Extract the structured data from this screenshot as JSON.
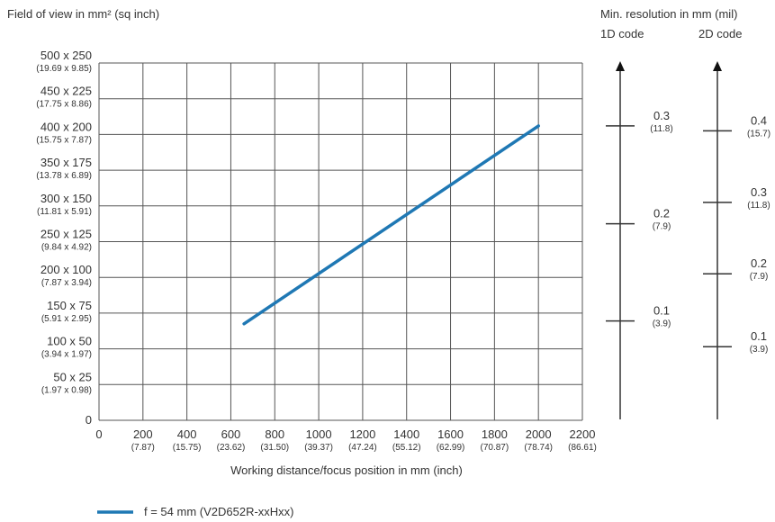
{
  "header": {
    "y_title": "Field of view in mm² (sq inch)",
    "res_title": "Min. resolution in mm (mil)",
    "col_1d": "1D code",
    "col_2d": "2D code"
  },
  "chart_data": {
    "type": "line",
    "xlabel": "Working distance/focus position in mm (inch)",
    "ylabel": "Field of view in mm² (sq inch)",
    "xlim": [
      0,
      2200
    ],
    "ylim": [
      0,
      500
    ],
    "grid": true,
    "legend_position": "bottom-left",
    "x_ticks": [
      {
        "value": 0,
        "label": "0",
        "sub": ""
      },
      {
        "value": 200,
        "label": "200",
        "sub": "(7.87)"
      },
      {
        "value": 400,
        "label": "400",
        "sub": "(15.75)"
      },
      {
        "value": 600,
        "label": "600",
        "sub": "(23.62)"
      },
      {
        "value": 800,
        "label": "800",
        "sub": "(31.50)"
      },
      {
        "value": 1000,
        "label": "1000",
        "sub": "(39.37)"
      },
      {
        "value": 1200,
        "label": "1200",
        "sub": "(47.24)"
      },
      {
        "value": 1400,
        "label": "1400",
        "sub": "(55.12)"
      },
      {
        "value": 1600,
        "label": "1600",
        "sub": "(62.99)"
      },
      {
        "value": 1800,
        "label": "1800",
        "sub": "(70.87)"
      },
      {
        "value": 2000,
        "label": "2000",
        "sub": "(78.74)"
      },
      {
        "value": 2200,
        "label": "2200",
        "sub": "(86.61)"
      }
    ],
    "y_ticks": [
      {
        "value": 0,
        "label": "0",
        "sub": ""
      },
      {
        "value": 50,
        "label": "50 x 25",
        "sub": "(1.97 x 0.98)"
      },
      {
        "value": 100,
        "label": "100 x 50",
        "sub": "(3.94 x 1.97)"
      },
      {
        "value": 150,
        "label": "150 x 75",
        "sub": "(5.91 x 2.95)"
      },
      {
        "value": 200,
        "label": "200 x 100",
        "sub": "(7.87 x 3.94)"
      },
      {
        "value": 250,
        "label": "250 x 125",
        "sub": "(9.84 x 4.92)"
      },
      {
        "value": 300,
        "label": "300 x 150",
        "sub": "(11.81 x 5.91)"
      },
      {
        "value": 350,
        "label": "350 x 175",
        "sub": "(13.78 x 6.89)"
      },
      {
        "value": 400,
        "label": "400 x 200",
        "sub": "(15.75 x 7.87)"
      },
      {
        "value": 450,
        "label": "450 x 225",
        "sub": "(17.75 x 8.86)"
      },
      {
        "value": 500,
        "label": "500 x 250",
        "sub": "(19.69 x 9.85)"
      }
    ],
    "series": [
      {
        "name": "f = 54 mm (V2D652R-xxHxx)",
        "color": "#1f78b4",
        "x": [
          660,
          2000
        ],
        "y": [
          135,
          412
        ]
      }
    ],
    "resolution_scales": [
      {
        "title": "1D code",
        "marks": [
          {
            "label": "0.3",
            "sub": "(11.8)",
            "y": 412
          },
          {
            "label": "0.2",
            "sub": "(7.9)",
            "y": 275
          },
          {
            "label": "0.1",
            "sub": "(3.9)",
            "y": 139
          }
        ]
      },
      {
        "title": "2D code",
        "marks": [
          {
            "label": "0.4",
            "sub": "(15.7)",
            "y": 405
          },
          {
            "label": "0.3",
            "sub": "(11.8)",
            "y": 305
          },
          {
            "label": "0.2",
            "sub": "(7.9)",
            "y": 205
          },
          {
            "label": "0.1",
            "sub": "(3.9)",
            "y": 103
          }
        ]
      }
    ]
  }
}
